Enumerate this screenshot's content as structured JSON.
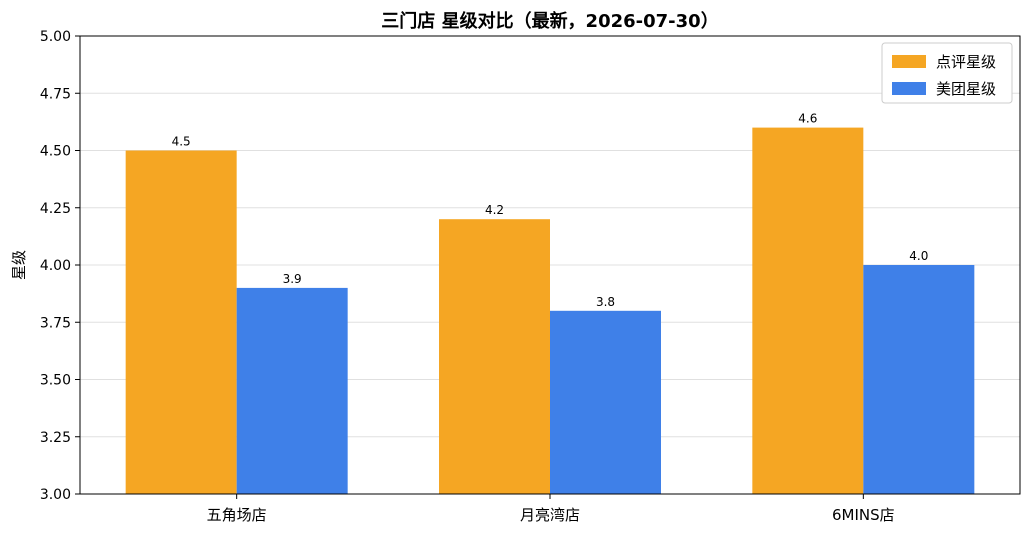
{
  "chart_data": {
    "type": "bar",
    "title": "三门店 星级对比（最新，2026-07-30）",
    "xlabel": "",
    "ylabel": "星级",
    "ylim": [
      3.0,
      5.0
    ],
    "yticks": [
      "3.00",
      "3.25",
      "3.50",
      "3.75",
      "4.00",
      "4.25",
      "4.50",
      "4.75",
      "5.00"
    ],
    "categories": [
      "五角场店",
      "月亮湾店",
      "6MINS店"
    ],
    "series": [
      {
        "name": "点评星级",
        "values": [
          4.5,
          4.2,
          4.6
        ],
        "labels": [
          "4.5",
          "4.2",
          "4.6"
        ],
        "color": "#F5A623"
      },
      {
        "name": "美团星级",
        "values": [
          3.9,
          3.8,
          4.0
        ],
        "labels": [
          "3.9",
          "3.8",
          "4.0"
        ],
        "color": "#3F80E8"
      }
    ],
    "grid": true,
    "legend_position": "top-right"
  }
}
